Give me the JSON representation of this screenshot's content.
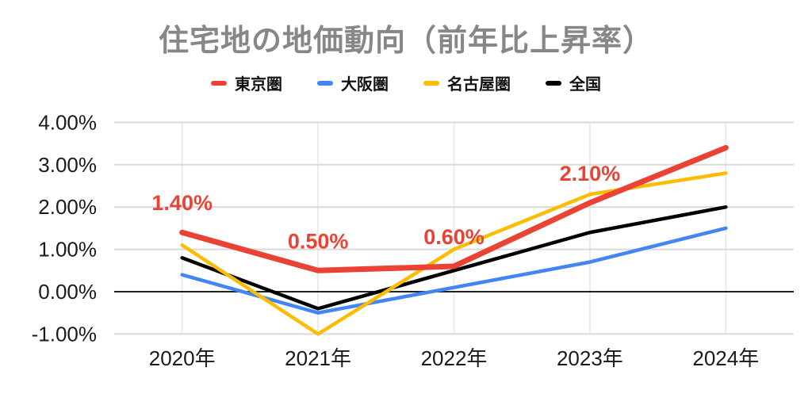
{
  "title": "住宅地の地価動向（前年比上昇率）",
  "title_color": "#878787",
  "chart_data": {
    "type": "line",
    "title": "住宅地の地価動向（前年比上昇率）",
    "x_labels": [
      "2020年",
      "2021年",
      "2022年",
      "2023年",
      "2024年"
    ],
    "y_axis": {
      "labels": [
        "4.00%",
        "3.00%",
        "2.00%",
        "1.00%",
        "0.00%",
        "-1.00%"
      ],
      "values": [
        4,
        3,
        2,
        1,
        0,
        -1
      ],
      "unit": "%"
    },
    "ylim": [
      -1,
      4
    ],
    "grid": true,
    "legend_position": "top",
    "series": [
      {
        "name": "東京圏",
        "color": "#EA4335",
        "values": [
          1.4,
          0.5,
          0.6,
          2.1,
          3.4
        ]
      },
      {
        "name": "大阪圏",
        "color": "#4285F4",
        "values": [
          0.4,
          -0.5,
          0.1,
          0.7,
          1.5
        ]
      },
      {
        "name": "名古屋圏",
        "color": "#FBBC04",
        "values": [
          1.1,
          -1.0,
          1.0,
          2.3,
          2.8
        ]
      },
      {
        "name": "全国",
        "color": "#000000",
        "values": [
          0.8,
          -0.4,
          0.5,
          1.4,
          2.0
        ]
      }
    ],
    "point_labels": [
      {
        "series_index": 0,
        "point_index": 0,
        "text": "1.40%"
      },
      {
        "series_index": 0,
        "point_index": 1,
        "text": "0.50%"
      },
      {
        "series_index": 0,
        "point_index": 2,
        "text": "0.60%"
      },
      {
        "series_index": 0,
        "point_index": 3,
        "text": "2.10%"
      }
    ],
    "point_label_color": "#EA4335"
  }
}
